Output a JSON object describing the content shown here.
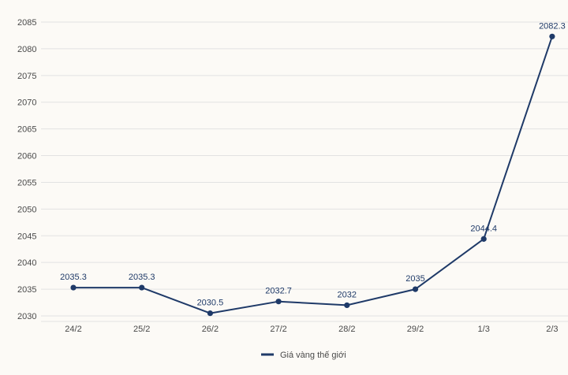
{
  "chart_data": {
    "type": "line",
    "categories": [
      "24/2",
      "25/2",
      "26/2",
      "27/2",
      "28/2",
      "29/2",
      "1/3",
      "2/3"
    ],
    "series": [
      {
        "name": "Giá vàng thế giới",
        "values": [
          2035.3,
          2035.3,
          2030.5,
          2032.7,
          2032,
          2035,
          2044.4,
          2082.3
        ],
        "color": "#1f3a68"
      }
    ],
    "data_labels": [
      "2035.3",
      "2035.3",
      "2030.5",
      "2032.7",
      "2032",
      "2035",
      "2044.4",
      "2082.3"
    ],
    "y_ticks": [
      2030,
      2035,
      2040,
      2045,
      2050,
      2055,
      2060,
      2065,
      2070,
      2075,
      2080,
      2085
    ],
    "ylim": [
      2030,
      2085
    ],
    "grid": true,
    "legend_position": "bottom-center",
    "title": "",
    "xlabel": "",
    "ylabel": ""
  },
  "colors": {
    "background": "#fcfaf6",
    "grid": "#e2e2e2",
    "line": "#1f3a68"
  }
}
